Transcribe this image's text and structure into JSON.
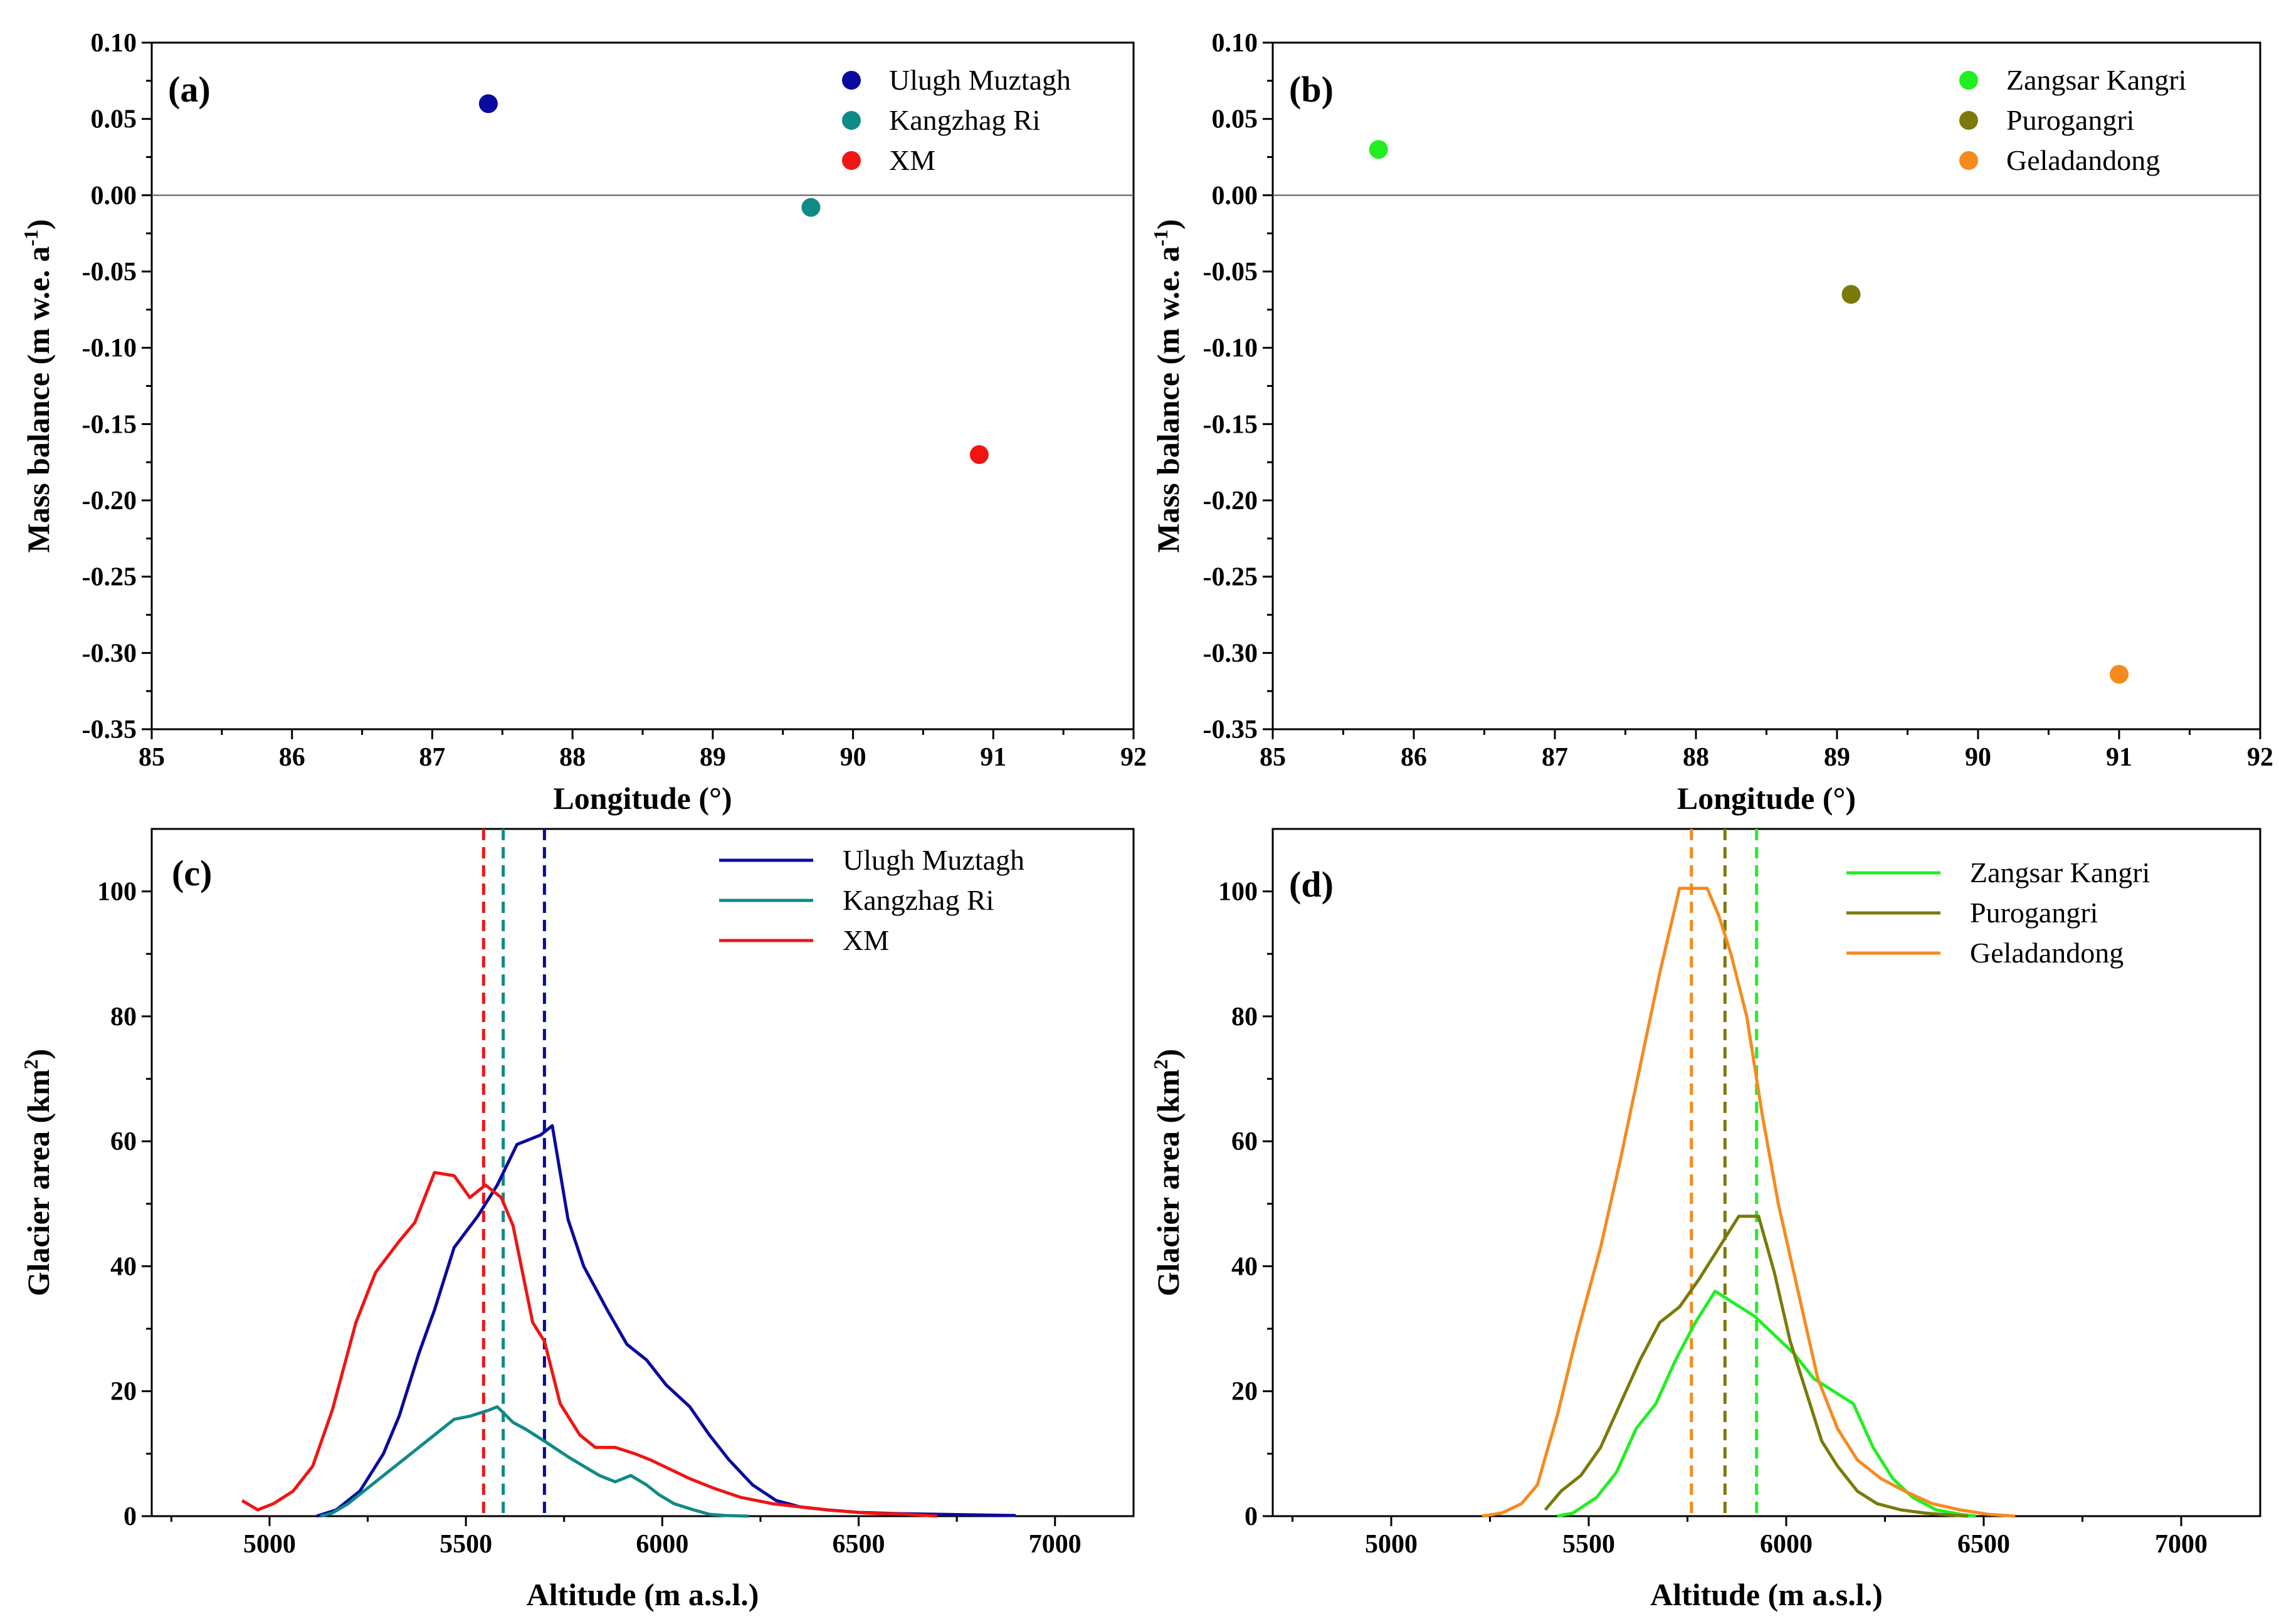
{
  "chart_data": [
    {
      "panel": "(a)",
      "type": "scatter",
      "xlabel": "Longitude (°)",
      "ylabel": "Mass balance (m w.e. a-1)",
      "ylabel_base": "Mass balance (m w.e. a",
      "ylabel_sup": "-1",
      "ylabel_end": ")",
      "xlim": [
        85,
        92
      ],
      "ylim": [
        -0.35,
        0.1
      ],
      "xticks": [
        85,
        86,
        87,
        88,
        89,
        90,
        91,
        92
      ],
      "yticks": [
        0.1,
        0.05,
        0.0,
        -0.05,
        -0.1,
        -0.15,
        -0.2,
        -0.25,
        -0.3,
        -0.35
      ],
      "yticklabels": [
        "0.10",
        "0.05",
        "0.00",
        "-0.05",
        "-0.10",
        "-0.15",
        "-0.20",
        "-0.25",
        "-0.30",
        "-0.35"
      ],
      "zero_line": true,
      "legend_position": "top-right",
      "series": [
        {
          "name": "Ulugh Muztagh",
          "color": "#0a0a9e",
          "x": 87.4,
          "y": 0.06
        },
        {
          "name": "Kangzhag Ri",
          "color": "#0f8a87",
          "x": 89.7,
          "y": -0.008
        },
        {
          "name": "XM",
          "color": "#f01414",
          "x": 90.9,
          "y": -0.17
        }
      ]
    },
    {
      "panel": "(b)",
      "type": "scatter",
      "xlabel": "Longitude (°)",
      "ylabel": "Mass balance (m w.e. a-1)",
      "ylabel_base": "Mass balance (m w.e. a",
      "ylabel_sup": "-1",
      "ylabel_end": ")",
      "xlim": [
        85,
        92
      ],
      "ylim": [
        -0.35,
        0.1
      ],
      "xticks": [
        85,
        86,
        87,
        88,
        89,
        90,
        91,
        92
      ],
      "yticks": [
        0.1,
        0.05,
        0.0,
        -0.05,
        -0.1,
        -0.15,
        -0.2,
        -0.25,
        -0.3,
        -0.35
      ],
      "yticklabels": [
        "0.10",
        "0.05",
        "0.00",
        "-0.05",
        "-0.10",
        "-0.15",
        "-0.20",
        "-0.25",
        "-0.30",
        "-0.35"
      ],
      "zero_line": true,
      "legend_position": "top-right",
      "series": [
        {
          "name": "Zangsar Kangri",
          "color": "#22ee22",
          "x": 85.75,
          "y": 0.03
        },
        {
          "name": "Purogangri",
          "color": "#7a7a0a",
          "x": 89.1,
          "y": -0.065
        },
        {
          "name": "Geladandong",
          "color": "#f68a1e",
          "x": 91.0,
          "y": -0.314
        }
      ]
    },
    {
      "panel": "(c)",
      "type": "line",
      "xlabel": "Altitude (m a.s.l.)",
      "ylabel": "Glacier area (km2)",
      "ylabel_base": "Glacier area (km",
      "ylabel_sup": "2",
      "ylabel_end": ")",
      "xlim": [
        4700,
        7200
      ],
      "ylim": [
        0,
        110
      ],
      "xticks": [
        5000,
        5500,
        6000,
        6500,
        7000
      ],
      "yticks": [
        0,
        20,
        40,
        60,
        80,
        100
      ],
      "legend_position": "top-right",
      "series": [
        {
          "name": "Ulugh Muztagh",
          "color": "#0a0a9e",
          "mean_altitude": 5700,
          "x": [
            5120,
            5170,
            5230,
            5290,
            5330,
            5380,
            5420,
            5470,
            5530,
            5580,
            5630,
            5690,
            5720,
            5760,
            5800,
            5860,
            5910,
            5960,
            6010,
            6070,
            6120,
            6170,
            6230,
            6290,
            6350,
            6420,
            6500,
            6600,
            6700,
            6800,
            6900
          ],
          "y": [
            0,
            1,
            4,
            10,
            16,
            26,
            33,
            43,
            48,
            53,
            59.5,
            61,
            62.5,
            47.5,
            40,
            33,
            27.5,
            25,
            21,
            17.5,
            13,
            9,
            5,
            2.5,
            1.5,
            1,
            0.6,
            0.4,
            0.3,
            0.2,
            0.1
          ]
        },
        {
          "name": "Kangzhag Ri",
          "color": "#0f8a87",
          "mean_altitude": 5595,
          "x": [
            5130,
            5160,
            5200,
            5250,
            5300,
            5360,
            5420,
            5470,
            5510,
            5560,
            5580,
            5620,
            5650,
            5700,
            5760,
            5800,
            5840,
            5880,
            5920,
            5960,
            5990,
            6030,
            6080,
            6120,
            6160,
            6220
          ],
          "y": [
            0,
            0.5,
            2,
            4.5,
            7,
            10,
            13,
            15.5,
            16,
            17,
            17.5,
            15,
            14,
            12,
            9.5,
            8,
            6.5,
            5.5,
            6.5,
            5,
            3.5,
            2,
            1,
            0.3,
            0.1,
            0
          ]
        },
        {
          "name": "XM",
          "color": "#f01414",
          "mean_altitude": 5545,
          "x": [
            4930,
            4970,
            5010,
            5060,
            5110,
            5160,
            5220,
            5270,
            5330,
            5370,
            5420,
            5470,
            5510,
            5550,
            5590,
            5620,
            5670,
            5700,
            5740,
            5790,
            5830,
            5880,
            5930,
            5970,
            6020,
            6070,
            6130,
            6200,
            6280,
            6350,
            6420,
            6520,
            6620,
            6700
          ],
          "y": [
            2.5,
            1,
            2,
            4,
            8,
            17,
            31,
            39,
            44,
            47,
            55,
            54.5,
            51,
            53,
            51,
            46.5,
            31,
            28,
            18,
            13,
            11,
            11,
            10,
            9,
            7.5,
            6,
            4.5,
            3,
            2,
            1.5,
            1,
            0.5,
            0.3,
            0
          ]
        }
      ]
    },
    {
      "panel": "(d)",
      "type": "line",
      "xlabel": "Altitude (m a.s.l.)",
      "ylabel": "Glacier area (km2)",
      "ylabel_base": "Glacier area (km",
      "ylabel_sup": "2",
      "ylabel_end": ")",
      "xlim": [
        4700,
        7200
      ],
      "ylim": [
        0,
        110
      ],
      "xticks": [
        5000,
        5500,
        6000,
        6500,
        7000
      ],
      "yticks": [
        0,
        20,
        40,
        60,
        80,
        100
      ],
      "legend_position": "top-right",
      "series": [
        {
          "name": "Zangsar Kangri",
          "color": "#22ee22",
          "mean_altitude": 5925,
          "x": [
            5420,
            5460,
            5520,
            5570,
            5620,
            5670,
            5720,
            5770,
            5820,
            5870,
            5920,
            5970,
            6020,
            6070,
            6120,
            6170,
            6220,
            6270,
            6320,
            6380,
            6440,
            6480
          ],
          "y": [
            0,
            0.5,
            3,
            7,
            14,
            18,
            25,
            31,
            36,
            34,
            32,
            29,
            26,
            22,
            20,
            18,
            11,
            6,
            3,
            1,
            0.3,
            0
          ]
        },
        {
          "name": "Purogangri",
          "color": "#7a7a0a",
          "mean_altitude": 5845,
          "x": [
            5390,
            5430,
            5480,
            5530,
            5580,
            5630,
            5680,
            5730,
            5780,
            5830,
            5880,
            5930,
            5970,
            6010,
            6050,
            6090,
            6130,
            6180,
            6230,
            6290,
            6350,
            6410,
            6460
          ],
          "y": [
            1,
            4,
            6.5,
            11,
            18,
            25,
            31,
            33.5,
            38,
            43,
            48,
            48,
            39,
            28,
            20,
            12,
            8,
            4,
            2,
            1,
            0.5,
            0.2,
            0
          ]
        },
        {
          "name": "Geladandong",
          "color": "#f68a1e",
          "mean_altitude": 5760,
          "x": [
            5230,
            5280,
            5330,
            5370,
            5420,
            5470,
            5530,
            5580,
            5630,
            5680,
            5730,
            5760,
            5800,
            5830,
            5860,
            5900,
            5940,
            5980,
            6030,
            6080,
            6130,
            6180,
            6240,
            6300,
            6370,
            6440,
            6510,
            6580
          ],
          "y": [
            0,
            0.5,
            2,
            5,
            16,
            29,
            43,
            57,
            72,
            87,
            100.5,
            100.5,
            100.5,
            96,
            90,
            80,
            64,
            50,
            36,
            22,
            14,
            9,
            6,
            4,
            2,
            1,
            0.3,
            0
          ]
        }
      ]
    }
  ]
}
